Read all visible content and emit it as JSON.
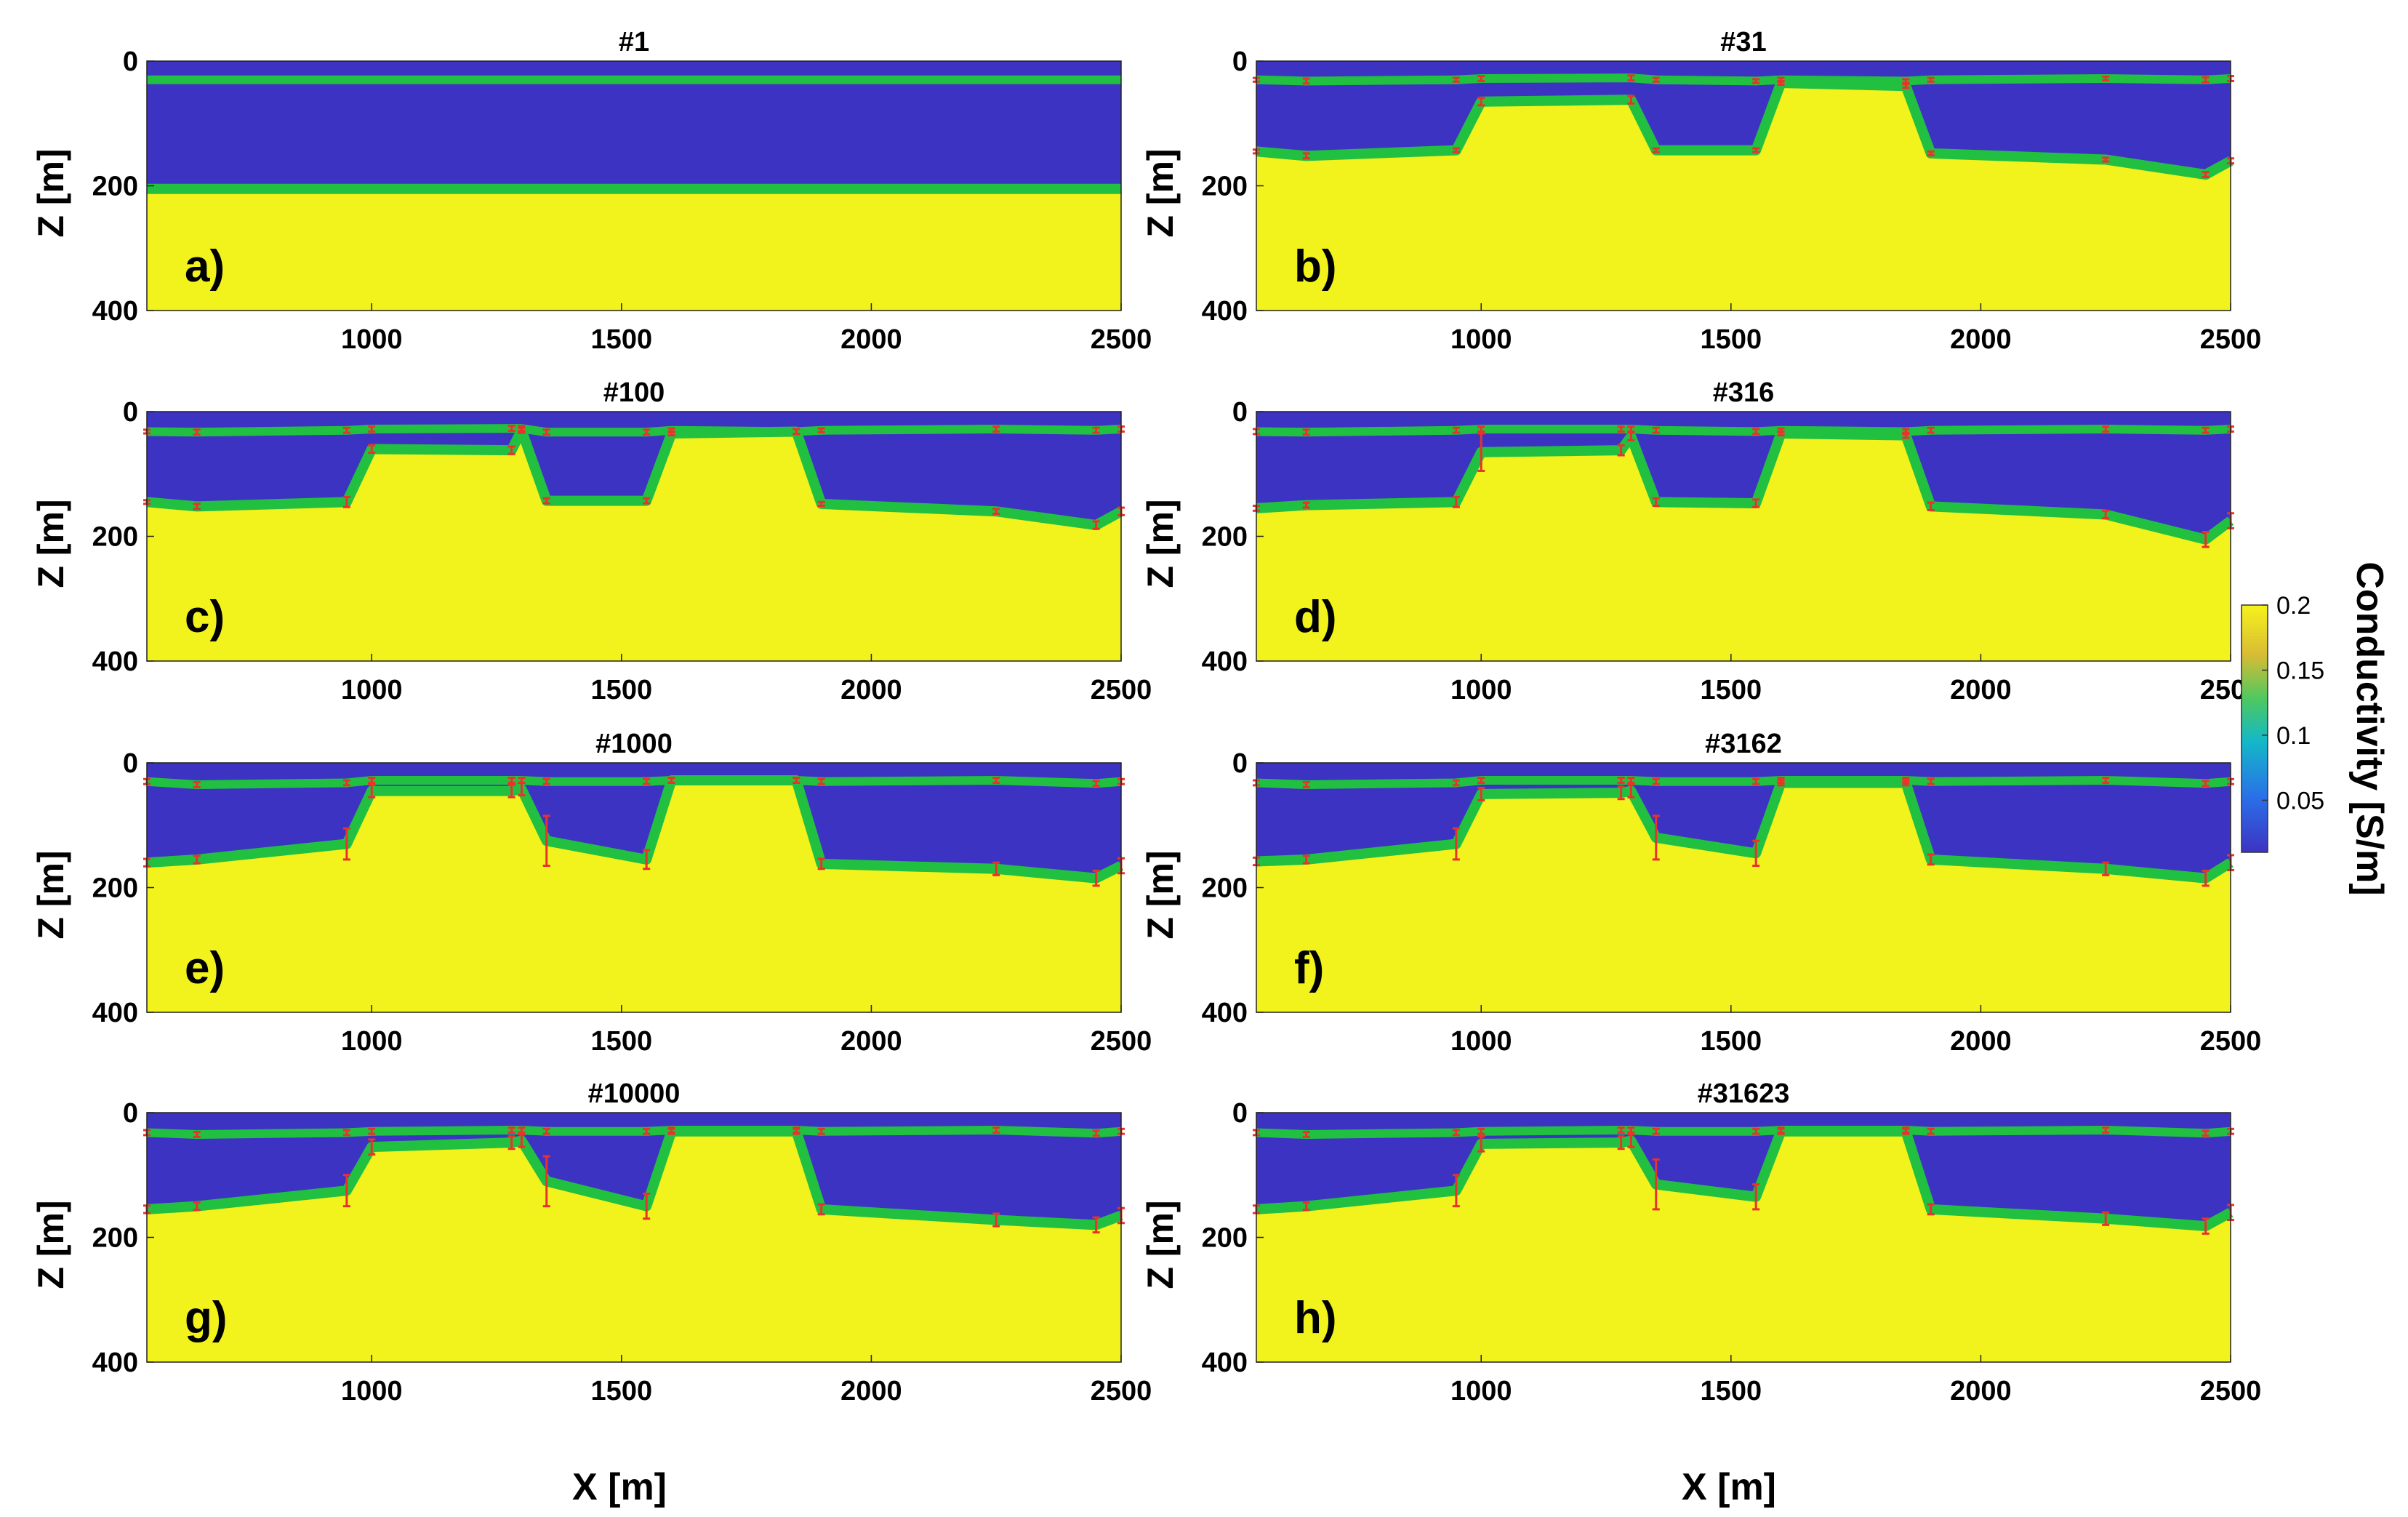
{
  "figure": {
    "x_axis_label": "X [m]",
    "y_axis_label": "Z [m]",
    "colorbar": {
      "label": "Conductivity [S/m]",
      "ticks": [
        "0.05",
        "0.1",
        "0.15",
        "0.2"
      ],
      "tick_values": [
        0.05,
        0.1,
        0.15,
        0.2
      ],
      "range": [
        0.01,
        0.2
      ]
    },
    "colors": {
      "conductive": "#f2f21c",
      "resistive": "#3d33c2",
      "interface": "#22c040",
      "uncertainty": "#e8322a"
    }
  },
  "chart_data": [
    {
      "type": "heatmap",
      "panel": "a)",
      "title": "#1",
      "xlim": [
        550,
        2500
      ],
      "ylim": [
        0,
        400
      ],
      "xticks": [
        "1000",
        "1500",
        "2000",
        "2500"
      ],
      "yticks": [
        "0",
        "200",
        "400"
      ],
      "stations_x": [
        550,
        2500
      ],
      "upper_interface_depth": [
        30,
        30
      ],
      "lower_interface_depth": [
        205,
        205
      ],
      "uncertainty": [
        0,
        0
      ]
    },
    {
      "type": "heatmap",
      "panel": "b)",
      "title": "#31",
      "xlim": [
        550,
        2500
      ],
      "ylim": [
        0,
        400
      ],
      "xticks": [
        "1000",
        "1500",
        "2000",
        "2500"
      ],
      "yticks": [
        "0",
        "200",
        "400"
      ],
      "stations_x": [
        550,
        650,
        950,
        1000,
        1300,
        1350,
        1550,
        1600,
        1850,
        1900,
        2250,
        2450,
        2500
      ],
      "upper_interface_depth": [
        30,
        32,
        30,
        28,
        27,
        30,
        32,
        30,
        32,
        30,
        28,
        30,
        28
      ],
      "lower_interface_depth": [
        145,
        152,
        143,
        65,
        62,
        143,
        143,
        35,
        40,
        148,
        158,
        182,
        160
      ],
      "uncertainty": [
        3,
        4,
        3,
        6,
        6,
        3,
        3,
        3,
        3,
        3,
        3,
        4,
        4
      ]
    },
    {
      "type": "heatmap",
      "panel": "c)",
      "title": "#100",
      "xlim": [
        550,
        2500
      ],
      "ylim": [
        0,
        400
      ],
      "xticks": [
        "1000",
        "1500",
        "2000",
        "2500"
      ],
      "yticks": [
        "0",
        "200",
        "400"
      ],
      "stations_x": [
        550,
        650,
        950,
        1000,
        1280,
        1300,
        1350,
        1550,
        1600,
        1850,
        1900,
        2250,
        2450,
        2500
      ],
      "upper_interface_depth": [
        32,
        33,
        30,
        28,
        27,
        27,
        33,
        33,
        30,
        32,
        30,
        28,
        30,
        28
      ],
      "lower_interface_depth": [
        145,
        152,
        145,
        60,
        62,
        30,
        143,
        143,
        35,
        32,
        148,
        160,
        182,
        160
      ],
      "uncertainty": [
        3,
        4,
        8,
        6,
        6,
        4,
        4,
        4,
        3,
        4,
        3,
        4,
        6,
        6
      ]
    },
    {
      "type": "heatmap",
      "panel": "d)",
      "title": "#316",
      "xlim": [
        550,
        2500
      ],
      "ylim": [
        0,
        400
      ],
      "xticks": [
        "1000",
        "1500",
        "2000",
        "2500"
      ],
      "yticks": [
        "0",
        "200",
        "400"
      ],
      "stations_x": [
        550,
        650,
        950,
        1000,
        1280,
        1300,
        1350,
        1550,
        1600,
        1850,
        1900,
        2250,
        2450,
        2500
      ],
      "upper_interface_depth": [
        32,
        33,
        30,
        28,
        28,
        28,
        30,
        32,
        30,
        32,
        30,
        28,
        30,
        28
      ],
      "lower_interface_depth": [
        155,
        150,
        145,
        65,
        62,
        40,
        145,
        147,
        35,
        38,
        152,
        165,
        205,
        175
      ],
      "uncertainty": [
        4,
        4,
        8,
        30,
        8,
        6,
        6,
        6,
        3,
        4,
        6,
        6,
        12,
        12
      ]
    },
    {
      "type": "heatmap",
      "panel": "e)",
      "title": "#1000",
      "xlim": [
        550,
        2500
      ],
      "ylim": [
        0,
        400
      ],
      "xticks": [
        "1000",
        "1500",
        "2000",
        "2500"
      ],
      "yticks": [
        "0",
        "200",
        "400"
      ],
      "stations_x": [
        550,
        650,
        950,
        1000,
        1280,
        1300,
        1350,
        1550,
        1600,
        1850,
        1900,
        2250,
        2450,
        2500
      ],
      "upper_interface_depth": [
        30,
        35,
        32,
        28,
        28,
        28,
        30,
        30,
        28,
        28,
        30,
        28,
        33,
        30
      ],
      "lower_interface_depth": [
        160,
        155,
        130,
        45,
        45,
        42,
        125,
        155,
        28,
        28,
        162,
        170,
        185,
        165
      ],
      "uncertainty": [
        6,
        6,
        25,
        10,
        10,
        10,
        40,
        15,
        4,
        4,
        8,
        10,
        12,
        12
      ]
    },
    {
      "type": "heatmap",
      "panel": "f)",
      "title": "#3162",
      "xlim": [
        550,
        2500
      ],
      "ylim": [
        0,
        400
      ],
      "xticks": [
        "1000",
        "1500",
        "2000",
        "2500"
      ],
      "yticks": [
        "0",
        "200",
        "400"
      ],
      "stations_x": [
        550,
        650,
        950,
        1000,
        1280,
        1300,
        1350,
        1550,
        1600,
        1850,
        1900,
        2250,
        2450,
        2500
      ],
      "upper_interface_depth": [
        32,
        35,
        32,
        28,
        28,
        28,
        30,
        30,
        28,
        28,
        30,
        28,
        33,
        30
      ],
      "lower_interface_depth": [
        158,
        155,
        130,
        50,
        48,
        45,
        120,
        145,
        32,
        32,
        155,
        170,
        185,
        160
      ],
      "uncertainty": [
        6,
        6,
        25,
        10,
        10,
        10,
        35,
        20,
        4,
        4,
        8,
        10,
        12,
        12
      ]
    },
    {
      "type": "heatmap",
      "panel": "g)",
      "title": "#10000",
      "xlim": [
        550,
        2500
      ],
      "ylim": [
        0,
        400
      ],
      "xticks": [
        "1000",
        "1500",
        "2000",
        "2500"
      ],
      "yticks": [
        "0",
        "200",
        "400"
      ],
      "stations_x": [
        550,
        650,
        950,
        1000,
        1280,
        1300,
        1350,
        1550,
        1600,
        1850,
        1900,
        2250,
        2450,
        2500
      ],
      "upper_interface_depth": [
        32,
        35,
        32,
        30,
        28,
        28,
        30,
        30,
        28,
        28,
        30,
        28,
        33,
        30
      ],
      "lower_interface_depth": [
        155,
        150,
        125,
        55,
        48,
        45,
        110,
        150,
        30,
        30,
        155,
        172,
        180,
        165
      ],
      "uncertainty": [
        6,
        6,
        25,
        12,
        10,
        10,
        40,
        20,
        4,
        4,
        8,
        10,
        12,
        12
      ]
    },
    {
      "type": "heatmap",
      "panel": "h)",
      "title": "#31623",
      "xlim": [
        550,
        2500
      ],
      "ylim": [
        0,
        400
      ],
      "xticks": [
        "1000",
        "1500",
        "2000",
        "2500"
      ],
      "yticks": [
        "0",
        "200",
        "400"
      ],
      "stations_x": [
        550,
        650,
        950,
        1000,
        1280,
        1300,
        1350,
        1550,
        1600,
        1850,
        1900,
        2250,
        2450,
        2500
      ],
      "upper_interface_depth": [
        32,
        35,
        32,
        30,
        28,
        28,
        30,
        30,
        28,
        28,
        30,
        28,
        33,
        30
      ],
      "lower_interface_depth": [
        155,
        150,
        125,
        50,
        48,
        45,
        115,
        135,
        30,
        30,
        155,
        170,
        182,
        160
      ],
      "uncertainty": [
        6,
        6,
        25,
        12,
        10,
        10,
        40,
        20,
        4,
        4,
        8,
        10,
        12,
        12
      ]
    }
  ]
}
